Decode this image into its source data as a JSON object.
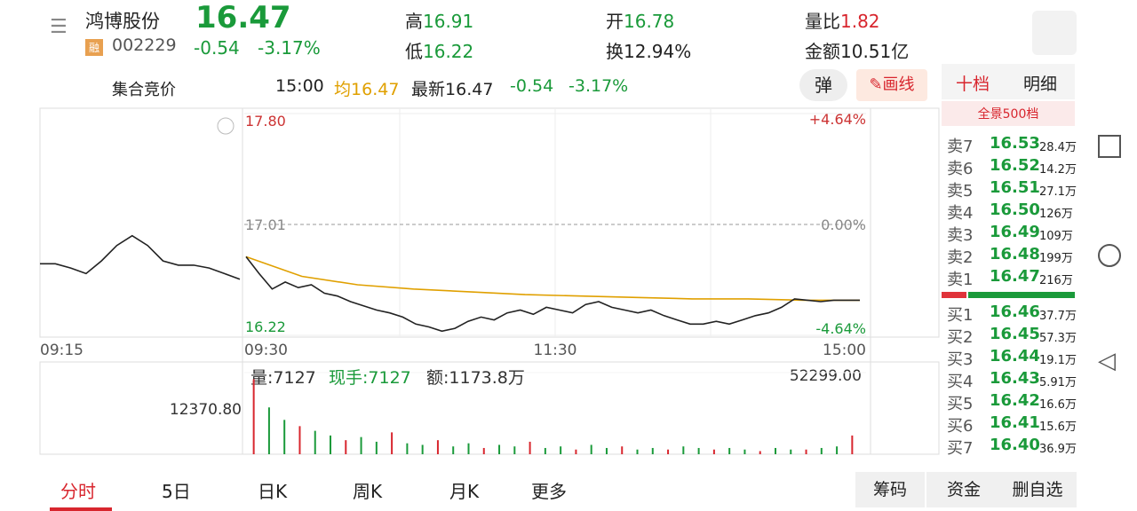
{
  "header": {
    "name": "鸿博股份",
    "badge": "融",
    "code": "002229",
    "price": "16.47",
    "change": "-0.54",
    "pct": "-3.17%",
    "high_label": "高",
    "high": "16.91",
    "low_label": "低",
    "low": "16.22",
    "open_label": "开",
    "open": "16.78",
    "turn_label": "换",
    "turn": "12.94%",
    "ratio_label": "量比",
    "ratio": "1.82",
    "amount_label": "金额",
    "amount": "10.51亿"
  },
  "subbar": {
    "auction": "集合竞价",
    "time": "15:00",
    "avg_label": "均",
    "avg": "16.47",
    "latest_label": "最新",
    "latest": "16.47",
    "change": "-0.54",
    "pct": "-3.17%",
    "popup": "弹",
    "draw": "画线"
  },
  "chart_data": {
    "type": "line",
    "ylim": [
      16.22,
      17.8
    ],
    "yticks": [
      {
        "value": 17.8,
        "label": "17.80"
      },
      17.01,
      16.22
    ],
    "pct_labels": [
      "+4.64%",
      "0.00%",
      "-4.64%"
    ],
    "time_labels": [
      "09:15",
      "09:30",
      "11:30",
      "15:00"
    ],
    "auction": {
      "name": "auction",
      "color": "#222222",
      "values": [
        16.73,
        16.73,
        16.7,
        16.66,
        16.75,
        16.86,
        16.93,
        16.86,
        16.75,
        16.72,
        16.72,
        16.7,
        16.66,
        16.62
      ]
    },
    "series": [
      {
        "name": "price",
        "color": "#222222",
        "values": [
          16.78,
          16.66,
          16.55,
          16.6,
          16.56,
          16.58,
          16.52,
          16.5,
          16.46,
          16.43,
          16.4,
          16.38,
          16.35,
          16.3,
          16.28,
          16.25,
          16.27,
          16.32,
          16.35,
          16.33,
          16.38,
          16.4,
          16.37,
          16.42,
          16.4,
          16.38,
          16.44,
          16.46,
          16.42,
          16.4,
          16.38,
          16.4,
          16.36,
          16.33,
          16.3,
          16.3,
          16.32,
          16.3,
          16.33,
          16.36,
          16.38,
          16.42,
          16.48,
          16.47,
          16.46,
          16.47,
          16.47,
          16.47
        ]
      },
      {
        "name": "avg",
        "color": "#e0a000",
        "values": [
          16.78,
          16.64,
          16.58,
          16.55,
          16.53,
          16.51,
          16.5,
          16.49,
          16.48,
          16.48,
          16.47,
          16.47
        ]
      }
    ]
  },
  "volume_data": {
    "type": "bar",
    "ylim": [
      0,
      52299
    ],
    "yticks": [
      {
        "value": 52299,
        "label": "52299.00"
      }
    ],
    "left_label": "12370.80",
    "volume": "量:7127",
    "hand": "现手:7127",
    "amount": "额:1173.8万",
    "values": [
      48000,
      30000,
      22000,
      18000,
      15000,
      12000,
      9000,
      11000,
      8000,
      14000,
      7000,
      6000,
      9000,
      5000,
      7000,
      4000,
      6000,
      5000,
      8000,
      4000,
      5000,
      3000,
      6000,
      4000,
      5000,
      3000,
      4000,
      3000,
      5000,
      4000,
      3000,
      4000,
      3000,
      2000,
      4000,
      3000,
      3000,
      4000,
      5000,
      12000
    ]
  },
  "book": {
    "tabs": [
      "十档",
      "明细"
    ],
    "panorama": "全景500档",
    "sell": [
      {
        "label": "卖7",
        "price": "16.53",
        "vol": "28.4万"
      },
      {
        "label": "卖6",
        "price": "16.52",
        "vol": "14.2万"
      },
      {
        "label": "卖5",
        "price": "16.51",
        "vol": "27.1万"
      },
      {
        "label": "卖4",
        "price": "16.50",
        "vol": "126万"
      },
      {
        "label": "卖3",
        "price": "16.49",
        "vol": "109万"
      },
      {
        "label": "卖2",
        "price": "16.48",
        "vol": "199万"
      },
      {
        "label": "卖1",
        "price": "16.47",
        "vol": "216万"
      }
    ],
    "buy": [
      {
        "label": "买1",
        "price": "16.46",
        "vol": "37.7万"
      },
      {
        "label": "买2",
        "price": "16.45",
        "vol": "57.3万"
      },
      {
        "label": "买3",
        "price": "16.44",
        "vol": "19.1万"
      },
      {
        "label": "买4",
        "price": "16.43",
        "vol": "5.91万"
      },
      {
        "label": "买5",
        "price": "16.42",
        "vol": "16.6万"
      },
      {
        "label": "买6",
        "price": "16.41",
        "vol": "15.6万"
      },
      {
        "label": "买7",
        "price": "16.40",
        "vol": "36.9万"
      }
    ]
  },
  "tabs": [
    "分时",
    "5日",
    "日K",
    "周K",
    "月K",
    "更多"
  ],
  "actions": [
    "筹码",
    "资金",
    "删自选"
  ]
}
